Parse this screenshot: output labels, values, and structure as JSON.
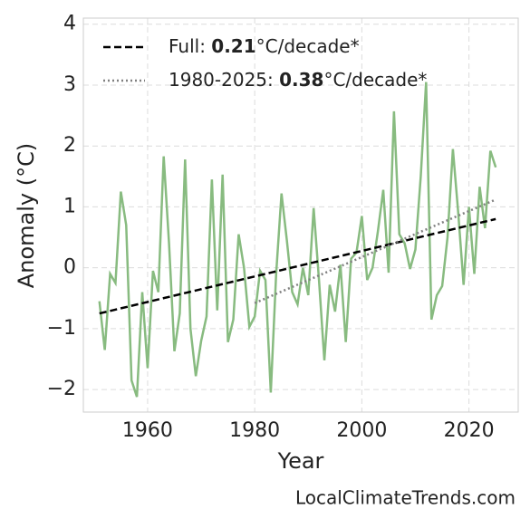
{
  "chart_data": {
    "type": "line",
    "xlabel": "Year",
    "ylabel": "Anomaly (°C)",
    "watermark": "LocalClimateTrends.com",
    "grid": true,
    "legend": "upper left",
    "xlim": [
      1948,
      2029.2
    ],
    "xticks": [
      1960,
      1980,
      2000,
      2020
    ],
    "ylim": [
      -2.37,
      4.1
    ],
    "yticks": [
      {
        "value": -2,
        "label": "−2"
      },
      {
        "value": -1,
        "label": "−1"
      },
      0,
      1,
      2,
      3,
      4
    ],
    "series": [
      {
        "color": "#88bb80",
        "x": [
          1951,
          1952,
          1953,
          1954,
          1955,
          1956,
          1957,
          1958,
          1959,
          1960,
          1961,
          1962,
          1963,
          1964,
          1965,
          1966,
          1967,
          1968,
          1969,
          1970,
          1971,
          1972,
          1973,
          1974,
          1975,
          1976,
          1977,
          1978,
          1979,
          1980,
          1981,
          1982,
          1983,
          1984,
          1985,
          1986,
          1987,
          1988,
          1989,
          1990,
          1991,
          1992,
          1993,
          1994,
          1995,
          1996,
          1997,
          1998,
          1999,
          2000,
          2001,
          2002,
          2003,
          2004,
          2005,
          2006,
          2007,
          2008,
          2009,
          2010,
          2011,
          2012,
          2013,
          2014,
          2015,
          2016,
          2017,
          2018,
          2019,
          2020,
          2021,
          2022,
          2023,
          2024,
          2025
        ],
        "values": [
          -0.55,
          -1.35,
          -0.1,
          -0.25,
          1.25,
          0.7,
          -1.85,
          -2.12,
          -0.4,
          -1.65,
          -0.05,
          -0.4,
          1.83,
          0.4,
          -1.37,
          -0.75,
          1.78,
          -1.0,
          -1.78,
          -1.2,
          -0.8,
          1.45,
          -0.7,
          1.53,
          -1.22,
          -0.85,
          0.55,
          0.0,
          -0.97,
          -0.8,
          -0.05,
          -0.2,
          -2.05,
          -0.1,
          1.22,
          0.45,
          -0.4,
          -0.6,
          0.0,
          -0.45,
          0.98,
          -0.2,
          -1.52,
          -0.28,
          -0.72,
          0.05,
          -1.22,
          0.15,
          0.25,
          0.85,
          -0.2,
          0.0,
          0.6,
          1.28,
          -0.08,
          2.57,
          0.55,
          0.4,
          -0.02,
          0.3,
          1.5,
          3.05,
          -0.85,
          -0.45,
          -0.3,
          0.5,
          1.95,
          0.9,
          -0.28,
          1.0,
          -0.1,
          1.33,
          0.65,
          1.92,
          1.65
        ]
      },
      {
        "color": "#000000",
        "dash": "dashed",
        "x": [
          1951,
          2025
        ],
        "values": [
          -0.75,
          0.8
        ],
        "legend_text": {
          "prefix": "Full: ",
          "rate": "0.21",
          "suffix": "°C/decade*"
        }
      },
      {
        "color": "#808080",
        "dash": "dotted",
        "x": [
          1980,
          2025
        ],
        "values": [
          -0.58,
          1.12
        ],
        "legend_text": {
          "prefix": "1980-2025: ",
          "rate": "0.38",
          "suffix": "°C/decade*"
        }
      }
    ]
  }
}
